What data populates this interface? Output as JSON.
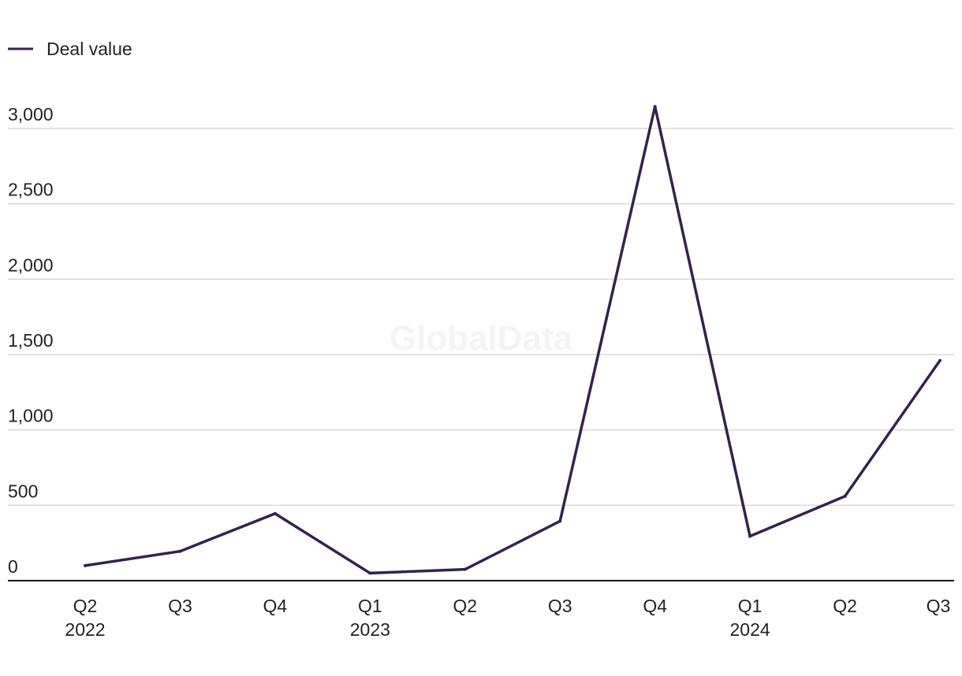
{
  "watermark": "GlobalData",
  "chart_data": {
    "type": "line",
    "x": [
      "Q2",
      "Q3",
      "Q4",
      "Q1",
      "Q2",
      "Q3",
      "Q4",
      "Q1",
      "Q2",
      "Q3"
    ],
    "x_group_labels": [
      "2022",
      "",
      "",
      "2023",
      "",
      "",
      "",
      "2024",
      "",
      ""
    ],
    "series": [
      {
        "name": "Deal value",
        "color": "#36214f",
        "values": [
          100,
          195,
          445,
          50,
          75,
          395,
          3145,
          295,
          560,
          1460
        ]
      }
    ],
    "title": "",
    "xlabel": "",
    "ylabel": "",
    "ylim": [
      0,
      3000
    ],
    "yticks": [
      0,
      500,
      1000,
      1500,
      2000,
      2500,
      3000
    ],
    "ytick_labels": [
      "0",
      "500",
      "1,000",
      "1,500",
      "2,000",
      "2,500",
      "3,000"
    ],
    "grid": "horizontal",
    "legend_position": "top-left"
  }
}
